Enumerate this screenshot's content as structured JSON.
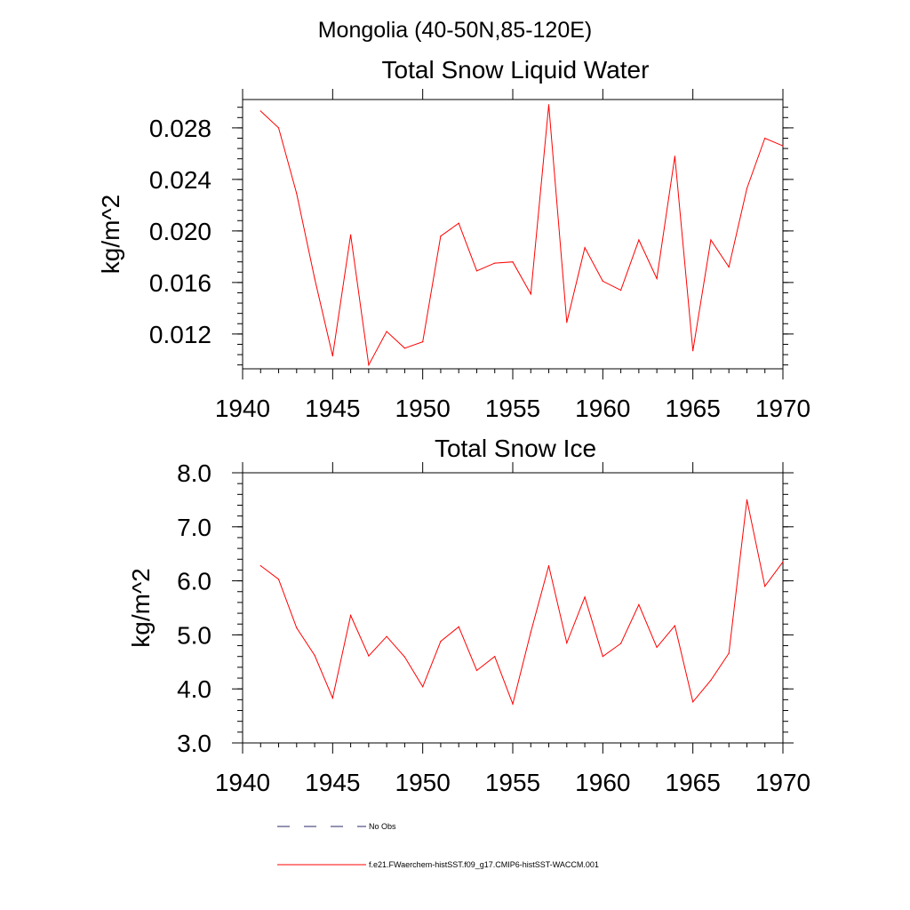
{
  "figure_title": "Mongolia (40-50N,85-120E)",
  "legend": [
    {
      "label": "No Obs",
      "color": "#2a2a6a",
      "style": "dashed"
    },
    {
      "label": "f.e21.FWaerchem-histSST.f09_g17.CMIP6-histSST-WACCM.001",
      "color": "#ff0000",
      "style": "solid"
    }
  ],
  "chart_data": [
    {
      "type": "line",
      "title": "Total Snow Liquid Water",
      "xlabel": "",
      "ylabel": "kg/m^2",
      "xlim": [
        1940,
        1970
      ],
      "ylim": [
        0.0093,
        0.0302
      ],
      "xticks": [
        1940,
        1945,
        1950,
        1955,
        1960,
        1965,
        1970
      ],
      "xtick_labels": [
        "1940",
        "1945",
        "1950",
        "1955",
        "1960",
        "1965",
        "1970"
      ],
      "yticks": [
        0.012,
        0.016,
        0.02,
        0.024,
        0.028
      ],
      "ytick_labels": [
        "0.012",
        "0.016",
        "0.020",
        "0.024",
        "0.028"
      ],
      "series": [
        {
          "color": "#ff0000",
          "x": [
            1941,
            1942,
            1943,
            1944,
            1945,
            1946,
            1947,
            1948,
            1949,
            1950,
            1951,
            1952,
            1953,
            1954,
            1955,
            1956,
            1957,
            1958,
            1959,
            1960,
            1961,
            1962,
            1963,
            1964,
            1965,
            1966,
            1967,
            1968,
            1969,
            1970
          ],
          "values": [
            0.0293,
            0.028,
            0.0229,
            0.0163,
            0.0103,
            0.0197,
            0.0096,
            0.0122,
            0.0109,
            0.0114,
            0.0196,
            0.0206,
            0.0169,
            0.0175,
            0.0176,
            0.0151,
            0.0298,
            0.0129,
            0.0187,
            0.0161,
            0.0154,
            0.0193,
            0.0163,
            0.0258,
            0.0107,
            0.0193,
            0.0172,
            0.0233,
            0.0272,
            0.0266
          ]
        }
      ]
    },
    {
      "type": "line",
      "title": "Total Snow Ice",
      "xlabel": "",
      "ylabel": "kg/m^2",
      "xlim": [
        1940,
        1970
      ],
      "ylim": [
        3.0,
        8.0
      ],
      "xticks": [
        1940,
        1945,
        1950,
        1955,
        1960,
        1965,
        1970
      ],
      "xtick_labels": [
        "1940",
        "1945",
        "1950",
        "1955",
        "1960",
        "1965",
        "1970"
      ],
      "yticks": [
        3.0,
        4.0,
        5.0,
        6.0,
        7.0,
        8.0
      ],
      "ytick_labels": [
        "3.0",
        "4.0",
        "5.0",
        "6.0",
        "7.0",
        "8.0"
      ],
      "series": [
        {
          "color": "#ff0000",
          "x": [
            1941,
            1942,
            1943,
            1944,
            1945,
            1946,
            1947,
            1948,
            1949,
            1950,
            1951,
            1952,
            1953,
            1954,
            1955,
            1956,
            1957,
            1958,
            1959,
            1960,
            1961,
            1962,
            1963,
            1964,
            1965,
            1966,
            1967,
            1968,
            1969,
            1970
          ],
          "values": [
            6.28,
            6.03,
            5.13,
            4.62,
            3.83,
            5.36,
            4.61,
            4.97,
            4.59,
            4.04,
            4.88,
            5.15,
            4.34,
            4.6,
            3.72,
            5.05,
            6.28,
            4.85,
            5.7,
            4.6,
            4.84,
            5.56,
            4.77,
            5.17,
            3.76,
            4.16,
            4.66,
            7.5,
            5.9,
            6.35
          ]
        }
      ]
    }
  ]
}
